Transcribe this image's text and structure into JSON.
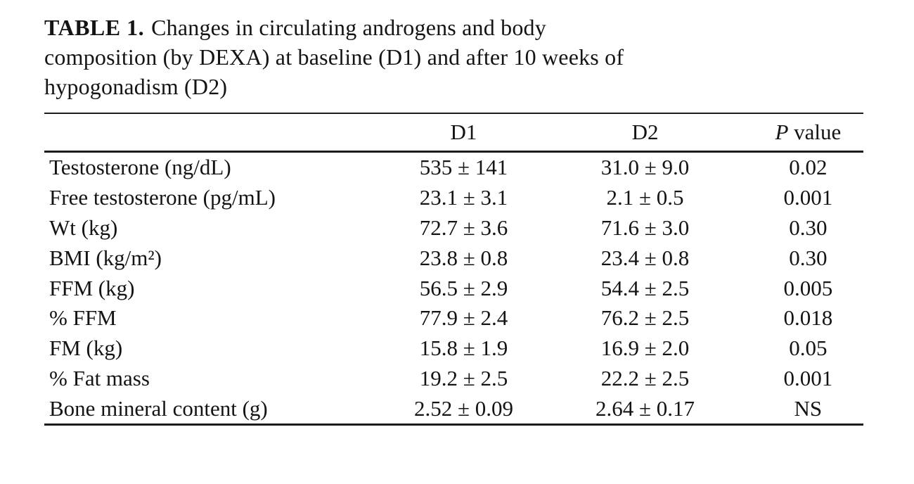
{
  "title": {
    "label": "TABLE 1.",
    "lines": [
      "Changes in circulating androgens and body",
      "composition (by DEXA) at baseline (D1) and after 10 weeks of",
      "hypogonadism (D2)"
    ]
  },
  "table": {
    "headers": {
      "label": "",
      "d1": "D1",
      "d2": "D2",
      "p_symbol": "P",
      "p_word": "value"
    },
    "rows": [
      {
        "label": "Testosterone (ng/dL)",
        "d1": "535 ± 141",
        "d2": "31.0 ± 9.0",
        "p": "0.02"
      },
      {
        "label": "Free testosterone (pg/mL)",
        "d1": "23.1 ± 3.1",
        "d2": "2.1 ± 0.5",
        "p": "0.001"
      },
      {
        "label": "Wt (kg)",
        "d1": "72.7 ± 3.6",
        "d2": "71.6 ± 3.0",
        "p": "0.30"
      },
      {
        "label": "BMI (kg/m²)",
        "d1": "23.8 ± 0.8",
        "d2": "23.4 ± 0.8",
        "p": "0.30"
      },
      {
        "label": "FFM (kg)",
        "d1": "56.5 ± 2.9",
        "d2": "54.4 ± 2.5",
        "p": "0.005"
      },
      {
        "label": "% FFM",
        "d1": "77.9 ± 2.4",
        "d2": "76.2 ± 2.5",
        "p": "0.018"
      },
      {
        "label": "FM (kg)",
        "d1": "15.8 ± 1.9",
        "d2": "16.9 ± 2.0",
        "p": "0.05"
      },
      {
        "label": "% Fat mass",
        "d1": "19.2 ± 2.5",
        "d2": "22.2 ± 2.5",
        "p": "0.001"
      },
      {
        "label": "Bone mineral content (g)",
        "d1": "2.52 ± 0.09",
        "d2": "2.64 ± 0.17",
        "p": "NS"
      }
    ]
  }
}
